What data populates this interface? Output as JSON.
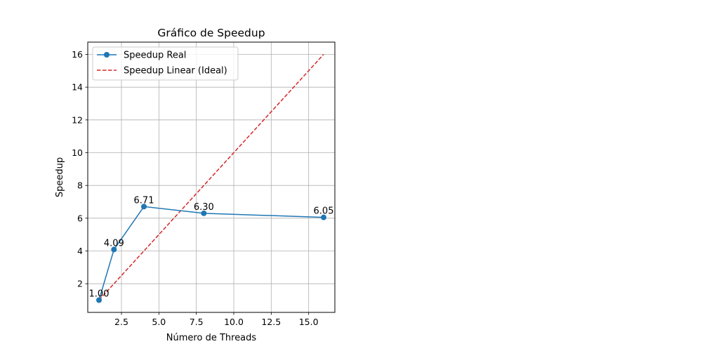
{
  "chart_data": {
    "type": "line",
    "title": "Gráfico de Speedup",
    "xlabel": "Número de Threads",
    "ylabel": "Speedup",
    "xlim": [
      0.25,
      16.75
    ],
    "ylim": [
      0.25,
      16.75
    ],
    "xticks": [
      2.5,
      5.0,
      7.5,
      10.0,
      12.5,
      15.0
    ],
    "xtick_labels": [
      "2.5",
      "5.0",
      "7.5",
      "10.0",
      "12.5",
      "15.0"
    ],
    "yticks": [
      2,
      4,
      6,
      8,
      10,
      12,
      14,
      16
    ],
    "ytick_labels": [
      "2",
      "4",
      "6",
      "8",
      "10",
      "12",
      "14",
      "16"
    ],
    "grid": true,
    "legend_position": "top-left",
    "series": [
      {
        "name": "Speedup Real",
        "style": "solid-marker",
        "color": "#1f77b4",
        "x": [
          1,
          2,
          4,
          8,
          16
        ],
        "y": [
          1.0,
          4.09,
          6.71,
          6.3,
          6.05
        ],
        "labels": [
          "1.00",
          "4.09",
          "6.71",
          "6.30",
          "6.05"
        ]
      },
      {
        "name": "Speedup Linear (Ideal)",
        "style": "dashed",
        "color": "#d62728",
        "x": [
          1,
          16
        ],
        "y": [
          1,
          16
        ]
      }
    ]
  }
}
